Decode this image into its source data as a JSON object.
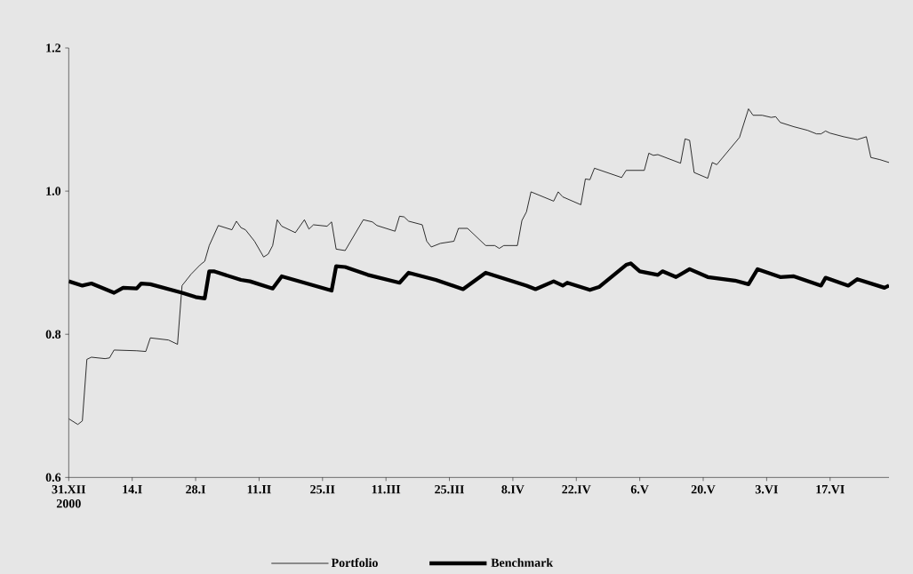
{
  "chart_data": {
    "type": "line",
    "xlim": [
      "2000-12-31",
      "2001-06-30"
    ],
    "xticks": [
      {
        "value": "2000-12-31",
        "label": "31.XII 2000"
      },
      {
        "value": "2001-01-14",
        "label": "14.I"
      },
      {
        "value": "2001-01-28",
        "label": "28.I"
      },
      {
        "value": "2001-02-11",
        "label": "11.II"
      },
      {
        "value": "2001-02-25",
        "label": "25.II"
      },
      {
        "value": "2001-03-11",
        "label": "11.III"
      },
      {
        "value": "2001-03-25",
        "label": "25.III"
      },
      {
        "value": "2001-04-08",
        "label": "8.IV"
      },
      {
        "value": "2001-04-22",
        "label": "22.IV"
      },
      {
        "value": "2001-05-06",
        "label": "6.V"
      },
      {
        "value": "2001-05-20",
        "label": "20.V"
      },
      {
        "value": "2001-06-03",
        "label": "3.VI"
      },
      {
        "value": "2001-06-17",
        "label": "17.VI"
      }
    ],
    "ylim": [
      0.6,
      1.2
    ],
    "yticks": [
      0.6,
      0.8,
      {
        "value": 1.0,
        "label": "1.0"
      },
      1.2
    ],
    "legend": "bottom",
    "series": [
      {
        "name": "Portfolio",
        "color": "#000000",
        "x": [
          "2000-12-31",
          "2001-01-02",
          "2001-01-03",
          "2001-01-04",
          "2001-01-05",
          "2001-01-08",
          "2001-01-09",
          "2001-01-10",
          "2001-01-15",
          "2001-01-17",
          "2001-01-18",
          "2001-01-22",
          "2001-01-24",
          "2001-01-25",
          "2001-01-27",
          "2001-01-29",
          "2001-01-30",
          "2001-01-31",
          "2001-02-02",
          "2001-02-05",
          "2001-02-06",
          "2001-02-07",
          "2001-02-08",
          "2001-02-10",
          "2001-02-12",
          "2001-02-13",
          "2001-02-14",
          "2001-02-15",
          "2001-02-16",
          "2001-02-19",
          "2001-02-21",
          "2001-02-22",
          "2001-02-23",
          "2001-02-26",
          "2001-02-27",
          "2001-02-28",
          "2001-03-02",
          "2001-03-06",
          "2001-03-08",
          "2001-03-09",
          "2001-03-13",
          "2001-03-14",
          "2001-03-15",
          "2001-03-16",
          "2001-03-19",
          "2001-03-20",
          "2001-03-21",
          "2001-03-23",
          "2001-03-26",
          "2001-03-27",
          "2001-03-29",
          "2001-04-02",
          "2001-04-04",
          "2001-04-05",
          "2001-04-06",
          "2001-04-09",
          "2001-04-10",
          "2001-04-11",
          "2001-04-12",
          "2001-04-17",
          "2001-04-18",
          "2001-04-19",
          "2001-04-23",
          "2001-04-24",
          "2001-04-25",
          "2001-04-26",
          "2001-05-02",
          "2001-05-03",
          "2001-05-07",
          "2001-05-08",
          "2001-05-09",
          "2001-05-10",
          "2001-05-15",
          "2001-05-16",
          "2001-05-17",
          "2001-05-18",
          "2001-05-21",
          "2001-05-22",
          "2001-05-23",
          "2001-05-28",
          "2001-05-30",
          "2001-05-31",
          "2001-06-02",
          "2001-06-04",
          "2001-06-05",
          "2001-06-06",
          "2001-06-09",
          "2001-06-12",
          "2001-06-14",
          "2001-06-15",
          "2001-06-16",
          "2001-06-17",
          "2001-06-20",
          "2001-06-23",
          "2001-06-25",
          "2001-06-26",
          "2001-06-28",
          "2001-06-30"
        ],
        "values": [
          0.682,
          0.674,
          0.679,
          0.765,
          0.768,
          0.766,
          0.767,
          0.778,
          0.777,
          0.776,
          0.795,
          0.792,
          0.786,
          0.868,
          0.884,
          0.897,
          0.902,
          0.924,
          0.952,
          0.946,
          0.958,
          0.949,
          0.946,
          0.93,
          0.908,
          0.912,
          0.924,
          0.96,
          0.951,
          0.942,
          0.96,
          0.947,
          0.953,
          0.951,
          0.957,
          0.919,
          0.917,
          0.96,
          0.957,
          0.952,
          0.944,
          0.965,
          0.964,
          0.958,
          0.953,
          0.93,
          0.922,
          0.927,
          0.93,
          0.948,
          0.948,
          0.924,
          0.924,
          0.92,
          0.924,
          0.924,
          0.959,
          0.971,
          0.999,
          0.986,
          0.999,
          0.992,
          0.981,
          1.017,
          1.016,
          1.032,
          1.019,
          1.029,
          1.029,
          1.053,
          1.05,
          1.051,
          1.039,
          1.073,
          1.071,
          1.026,
          1.018,
          1.04,
          1.037,
          1.075,
          1.115,
          1.106,
          1.106,
          1.103,
          1.104,
          1.096,
          1.09,
          1.085,
          1.08,
          1.08,
          1.084,
          1.081,
          1.076,
          1.072,
          1.076,
          1.047,
          1.044,
          1.04
        ]
      },
      {
        "name": "Benchmark",
        "color": "#000000",
        "x": [
          "2000-12-31",
          "2001-01-03",
          "2001-01-05",
          "2001-01-10",
          "2001-01-12",
          "2001-01-15",
          "2001-01-16",
          "2001-01-18",
          "2001-01-25",
          "2001-01-28",
          "2001-01-30",
          "2001-01-31",
          "2001-02-01",
          "2001-02-07",
          "2001-02-09",
          "2001-02-14",
          "2001-02-16",
          "2001-02-21",
          "2001-02-27",
          "2001-02-28",
          "2001-03-02",
          "2001-03-07",
          "2001-03-14",
          "2001-03-16",
          "2001-03-22",
          "2001-03-28",
          "2001-04-02",
          "2001-04-11",
          "2001-04-13",
          "2001-04-17",
          "2001-04-19",
          "2001-04-20",
          "2001-04-25",
          "2001-04-27",
          "2001-05-03",
          "2001-05-04",
          "2001-05-06",
          "2001-05-10",
          "2001-05-11",
          "2001-05-14",
          "2001-05-17",
          "2001-05-21",
          "2001-05-27",
          "2001-05-30",
          "2001-06-01",
          "2001-06-06",
          "2001-06-09",
          "2001-06-15",
          "2001-06-16",
          "2001-06-21",
          "2001-06-23",
          "2001-06-29",
          "2001-06-30"
        ],
        "values": [
          0.874,
          0.868,
          0.871,
          0.858,
          0.865,
          0.864,
          0.871,
          0.87,
          0.858,
          0.852,
          0.85,
          0.888,
          0.888,
          0.876,
          0.874,
          0.864,
          0.881,
          0.872,
          0.861,
          0.895,
          0.894,
          0.883,
          0.872,
          0.886,
          0.876,
          0.863,
          0.886,
          0.868,
          0.863,
          0.874,
          0.868,
          0.872,
          0.862,
          0.866,
          0.897,
          0.899,
          0.888,
          0.883,
          0.888,
          0.88,
          0.891,
          0.88,
          0.875,
          0.87,
          0.891,
          0.88,
          0.881,
          0.868,
          0.879,
          0.868,
          0.877,
          0.865,
          0.868
        ]
      }
    ]
  }
}
